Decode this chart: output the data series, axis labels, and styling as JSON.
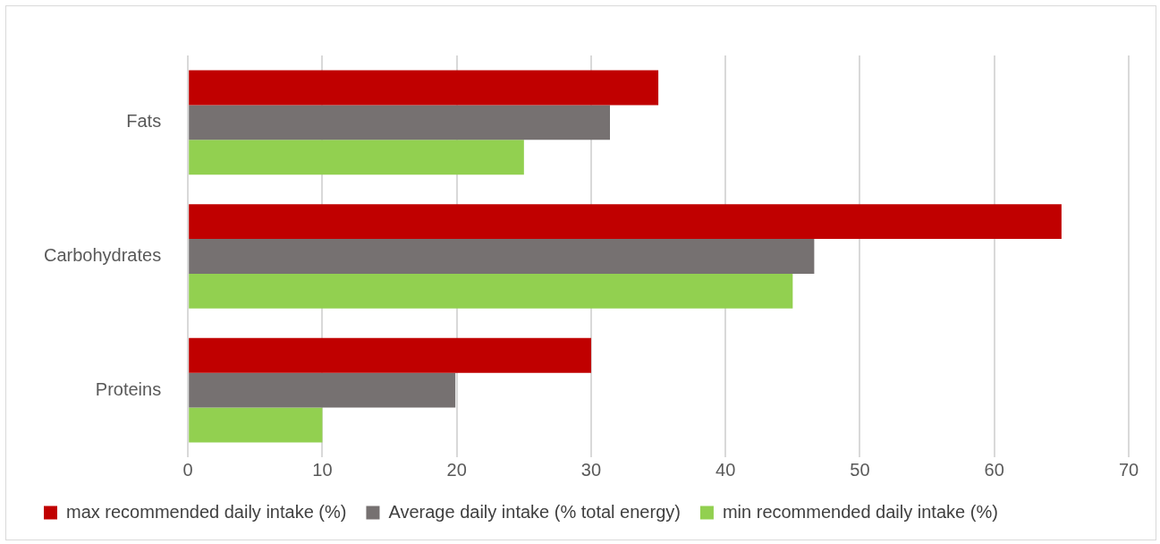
{
  "chart_data": {
    "type": "bar",
    "orientation": "horizontal",
    "categories": [
      "Fats",
      "Carbohydrates",
      "Proteins"
    ],
    "series": [
      {
        "name": "max recommended daily intake (%)",
        "color": "#c00000",
        "values": [
          35,
          65,
          30
        ]
      },
      {
        "name": "Average daily intake (% total energy)",
        "color": "#767171",
        "values": [
          31.4,
          46.6,
          19.9
        ]
      },
      {
        "name": "min recommended daily intake (%)",
        "color": "#92d050",
        "values": [
          25,
          45,
          10
        ]
      }
    ],
    "xlim": [
      0,
      70
    ],
    "xticks": [
      0,
      10,
      20,
      30,
      40,
      50,
      60,
      70
    ],
    "grid": "x",
    "legend": "bottom"
  }
}
